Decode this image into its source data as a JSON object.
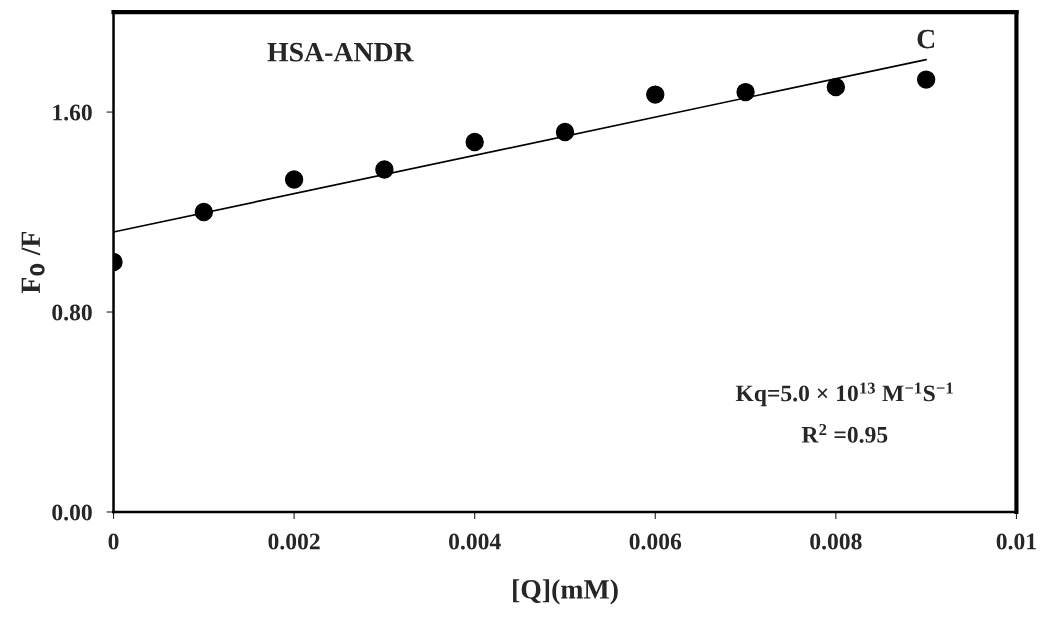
{
  "chart_data": {
    "type": "scatter",
    "title": "HSA-ANDR",
    "xlabel": "[Q](mM)",
    "ylabel": "F$_{0}$ /F",
    "x": [
      0,
      0.001,
      0.002,
      0.003,
      0.004,
      0.005,
      0.006,
      0.007,
      0.008,
      0.009
    ],
    "series": [
      {
        "color": "#000000",
        "marker": "circle",
        "values": [
          1.0,
          1.2,
          1.33,
          1.37,
          1.48,
          1.52,
          1.67,
          1.68,
          1.7,
          1.73
        ]
      },
      {
        "type": "line",
        "color": "#000000",
        "line_style": "solid",
        "marker": "none",
        "x": [
          0,
          0.009
        ],
        "values": [
          1.12,
          1.81
        ]
      }
    ],
    "xlim": [
      0,
      0.01
    ],
    "xticks": [
      0,
      0.002,
      0.004,
      0.006,
      0.008,
      0.01
    ],
    "ylim": [
      0,
      2.0
    ],
    "yticks": [
      {
        "value": 0,
        "label": "0.00"
      },
      {
        "value": 0.8,
        "label": "0.80"
      },
      {
        "value": 1.6,
        "label": "1.60"
      }
    ],
    "grid": false,
    "legend": false,
    "annotations": [
      {
        "text": "C",
        "x": 0.009,
        "y": 1.81
      },
      "Kq=5.0 × 10$^{13}$ M$^{−1}$S$^{−1}$",
      "R$^{2}$ =0.95"
    ]
  }
}
